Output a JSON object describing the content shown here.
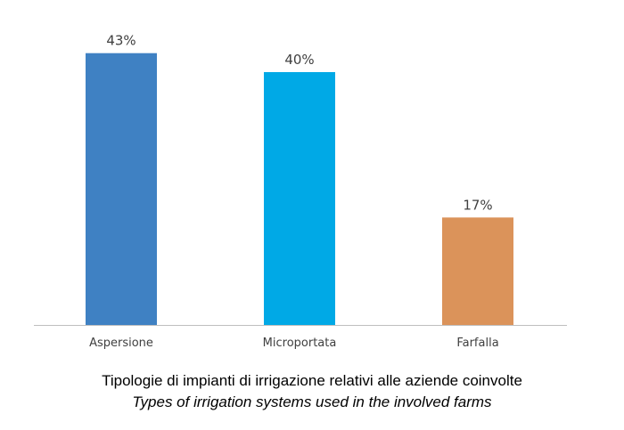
{
  "chart_data": {
    "type": "bar",
    "categories": [
      "Aspersione",
      "Microportata",
      "Farfalla"
    ],
    "values": [
      43,
      40,
      17
    ],
    "value_suffix": "%",
    "colors": [
      "#3f81c3",
      "#00a9e6",
      "#db935a"
    ],
    "axis_color": "#bfbfbf",
    "ylim": [
      0,
      50
    ],
    "title": "",
    "xlabel": "",
    "ylabel": ""
  },
  "caption": {
    "italian": "Tipologie di impianti di irrigazione relativi alle aziende coinvolte",
    "english": "Types of irrigation systems used in the involved farms"
  }
}
